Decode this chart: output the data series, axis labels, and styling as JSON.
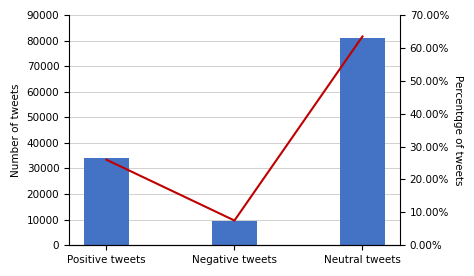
{
  "categories": [
    "Positive tweets",
    "Negative tweets",
    "Neutral tweets"
  ],
  "bar_values": [
    34000,
    9500,
    81000
  ],
  "bar_color": "#4472C4",
  "line_values": [
    0.26,
    0.075,
    0.635
  ],
  "line_color": "#C00000",
  "left_ylim": [
    0,
    90000
  ],
  "left_yticks": [
    0,
    10000,
    20000,
    30000,
    40000,
    50000,
    60000,
    70000,
    80000,
    90000
  ],
  "right_ylim": [
    0.0,
    0.7
  ],
  "right_yticks": [
    0.0,
    0.1,
    0.2,
    0.3,
    0.4,
    0.5,
    0.6,
    0.7
  ],
  "ylabel_left": "Number of tweets",
  "ylabel_right": "Percentqge of tweets",
  "bar_width": 0.35,
  "figsize": [
    4.74,
    2.76
  ],
  "dpi": 100,
  "bg_color": "#ffffff",
  "grid_color": "#d0d0d0",
  "tick_fontsize": 7.5,
  "label_fontsize": 7.5
}
